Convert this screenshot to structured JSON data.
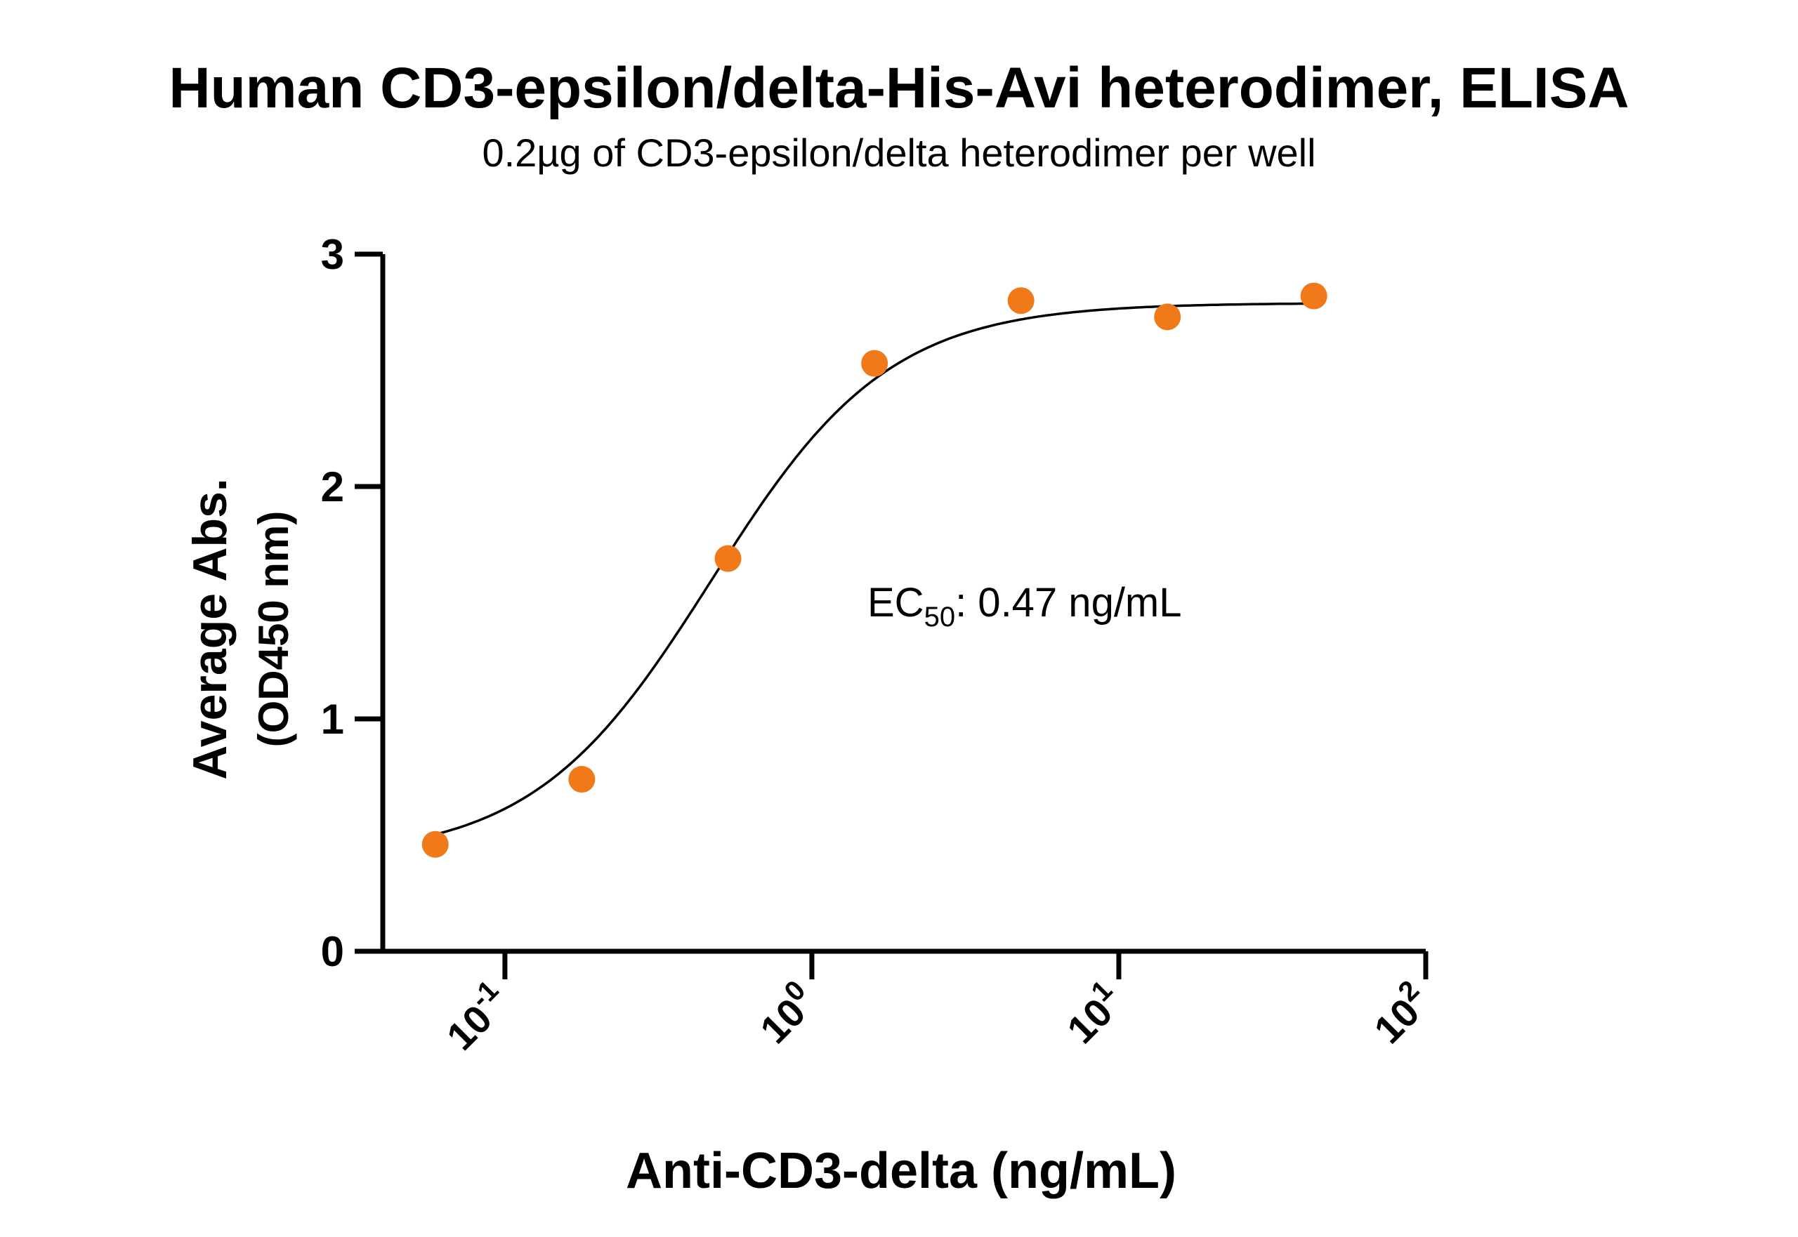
{
  "chart_data": {
    "type": "scatter",
    "title": "Human CD3-epsilon/delta-His-Avi heterodimer, ELISA",
    "subtitle": "0.2µg of CD3-epsilon/delta heterodimer per well",
    "xlabel": "Anti-CD3-delta (ng/mL)",
    "ylabel": "Average Abs.",
    "ylabel_unit": "(OD450 nm)",
    "x_scale": "log",
    "xlim": [
      0.04,
      100
    ],
    "ylim": [
      0,
      3
    ],
    "x_ticks": [
      {
        "base": "10",
        "exp": "-1",
        "value": 0.1
      },
      {
        "base": "10",
        "exp": "0",
        "value": 1
      },
      {
        "base": "10",
        "exp": "1",
        "value": 10
      },
      {
        "base": "10",
        "exp": "2",
        "value": 100
      }
    ],
    "y_ticks": [
      {
        "label": "0",
        "value": 0
      },
      {
        "label": "1",
        "value": 1
      },
      {
        "label": "2",
        "value": 2
      },
      {
        "label": "3",
        "value": 3
      }
    ],
    "series": [
      {
        "x": [
          0.0593,
          0.178,
          0.533,
          1.6,
          4.8,
          14.4,
          43.2
        ],
        "y": [
          0.46,
          0.74,
          1.69,
          2.53,
          2.8,
          2.73,
          2.82
        ],
        "color": "#F07A1A"
      }
    ],
    "fit_curve": {
      "model": "4PL",
      "bottom": 0.4,
      "top": 2.79,
      "ec50": 0.47,
      "hill": 1.5,
      "color": "#000000"
    },
    "annotation": {
      "prefix": "EC",
      "subscript": "50",
      "text": ": 0.47 ng/mL"
    },
    "grid": false
  }
}
